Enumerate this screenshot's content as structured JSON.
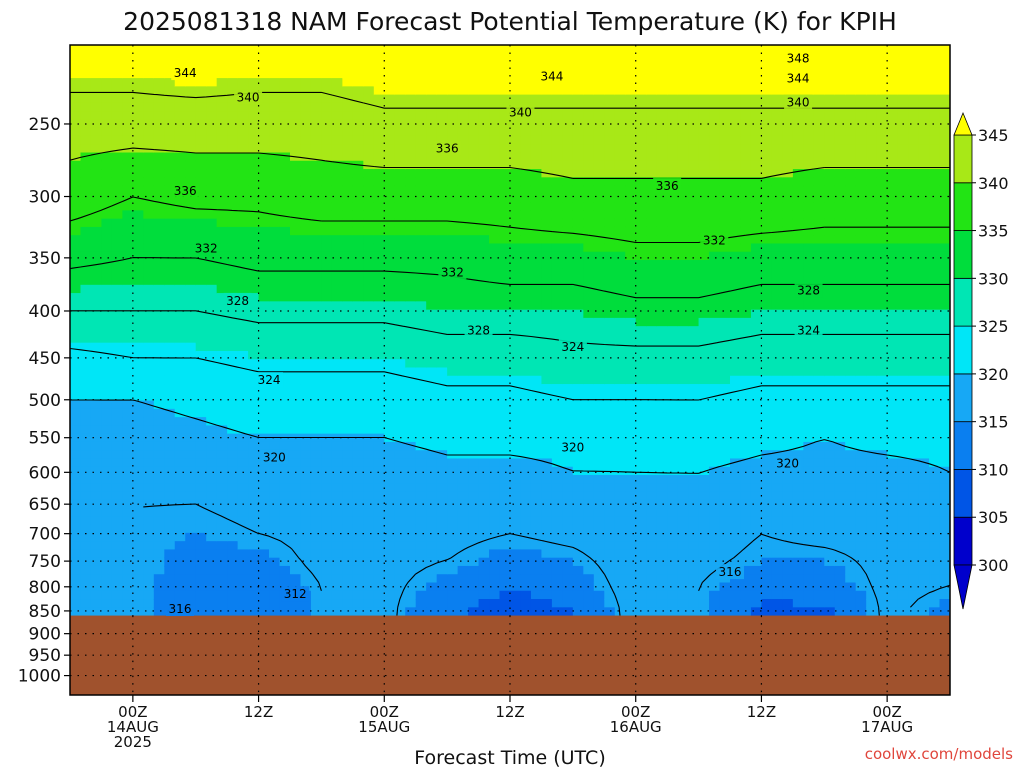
{
  "chart_data": {
    "type": "heatmap",
    "title": "2025081318 NAM Forecast Potential Temperature (K) for KPIH",
    "xlabel": "Forecast Time (UTC)",
    "ylabel": "",
    "y_scale": "log",
    "y_inverted": true,
    "ylim": [
      1050,
      205
    ],
    "y_ticks": [
      250,
      300,
      350,
      400,
      450,
      500,
      550,
      600,
      650,
      700,
      750,
      800,
      850,
      900,
      950,
      1000
    ],
    "x_unit": "hours since 2025-08-13 18Z",
    "xlim": [
      0,
      84
    ],
    "x_ticks": [
      {
        "x": 6,
        "lines": [
          "00Z",
          "14AUG",
          "2025"
        ]
      },
      {
        "x": 18,
        "lines": [
          "12Z"
        ]
      },
      {
        "x": 30,
        "lines": [
          "00Z",
          "15AUG"
        ]
      },
      {
        "x": 42,
        "lines": [
          "12Z"
        ]
      },
      {
        "x": 54,
        "lines": [
          "00Z",
          "16AUG"
        ]
      },
      {
        "x": 66,
        "lines": [
          "12Z"
        ]
      },
      {
        "x": 78,
        "lines": [
          "00Z",
          "17AUG"
        ]
      }
    ],
    "grid": true,
    "underground_below_hpa": 860,
    "colorbar": {
      "levels": [
        300,
        305,
        310,
        315,
        320,
        325,
        330,
        335,
        340,
        345
      ],
      "labels": [
        "300",
        "305",
        "310",
        "315",
        "320",
        "325",
        "330",
        "335",
        "340",
        "345"
      ],
      "extend": "both"
    },
    "contour_levels": [
      316,
      320,
      324,
      328,
      332,
      336,
      340,
      344,
      348
    ],
    "theta_profiles": {
      "pressures": [
        205,
        250,
        300,
        350,
        400,
        450,
        500,
        550,
        600,
        650,
        700,
        750,
        800,
        850
      ],
      "times": [
        0,
        6,
        12,
        18,
        24,
        30,
        36,
        42,
        48,
        54,
        60,
        66,
        72,
        78,
        84
      ],
      "values": [
        [
          347,
          342,
          338,
          333,
          328,
          323,
          320,
          318,
          317,
          317,
          317,
          318,
          318,
          318
        ],
        [
          347,
          342,
          336,
          332,
          328,
          324,
          320,
          318,
          317,
          316,
          316,
          316,
          316,
          316
        ],
        [
          348,
          342,
          337,
          332,
          328,
          324,
          321,
          319,
          317,
          316,
          315,
          314,
          313,
          312
        ],
        [
          347,
          342,
          337,
          333,
          329,
          325,
          322,
          320,
          318,
          317,
          316,
          314,
          312,
          310
        ],
        [
          347,
          342,
          338,
          333,
          329,
          325,
          322,
          320,
          318,
          317,
          317,
          317,
          316,
          316
        ],
        [
          348,
          343,
          338,
          333,
          329,
          325,
          322,
          320,
          318,
          317,
          317,
          317,
          317,
          317
        ],
        [
          348,
          343,
          338,
          333,
          330,
          326,
          323,
          321,
          319,
          318,
          317,
          316,
          314,
          312
        ],
        [
          348,
          343,
          338,
          334,
          330,
          326,
          323,
          321,
          319,
          318,
          316,
          314,
          311,
          306
        ],
        [
          348,
          343,
          339,
          334,
          330,
          327,
          324,
          321,
          320,
          318,
          317,
          315,
          313,
          310
        ],
        [
          348,
          343,
          339,
          335,
          331,
          327,
          324,
          321,
          320,
          319,
          318,
          318,
          318,
          318
        ],
        [
          348,
          343,
          339,
          335,
          331,
          327,
          324,
          322,
          320,
          319,
          318,
          317,
          316,
          316
        ],
        [
          348,
          343,
          339,
          334,
          330,
          326,
          323,
          321,
          319,
          318,
          316,
          315,
          313,
          308
        ],
        [
          348,
          343,
          338,
          334,
          330,
          326,
          323,
          320,
          319,
          318,
          317,
          315,
          313,
          309
        ],
        [
          348,
          343,
          338,
          334,
          330,
          326,
          323,
          321,
          319,
          318,
          317,
          317,
          317,
          317
        ],
        [
          348,
          343,
          338,
          334,
          330,
          326,
          323,
          321,
          320,
          319,
          318,
          317,
          316,
          314
        ]
      ]
    },
    "contour_labels": [
      {
        "text": "348",
        "x": 69.5,
        "y": 212
      },
      {
        "text": "344",
        "x": 11,
        "y": 220
      },
      {
        "text": "344",
        "x": 46,
        "y": 222
      },
      {
        "text": "344",
        "x": 69.5,
        "y": 223
      },
      {
        "text": "340",
        "x": 17,
        "y": 234
      },
      {
        "text": "340",
        "x": 43,
        "y": 243
      },
      {
        "text": "340",
        "x": 69.5,
        "y": 237
      },
      {
        "text": "336",
        "x": 36,
        "y": 266
      },
      {
        "text": "336",
        "x": 11,
        "y": 296
      },
      {
        "text": "336",
        "x": 57,
        "y": 292
      },
      {
        "text": "332",
        "x": 13,
        "y": 342
      },
      {
        "text": "332",
        "x": 36.5,
        "y": 363
      },
      {
        "text": "332",
        "x": 61.5,
        "y": 335
      },
      {
        "text": "328",
        "x": 16,
        "y": 390
      },
      {
        "text": "328",
        "x": 39,
        "y": 420
      },
      {
        "text": "328",
        "x": 70.5,
        "y": 380
      },
      {
        "text": "324",
        "x": 19,
        "y": 476
      },
      {
        "text": "324",
        "x": 48,
        "y": 438
      },
      {
        "text": "324",
        "x": 70.5,
        "y": 420
      },
      {
        "text": "320",
        "x": 19.5,
        "y": 578
      },
      {
        "text": "320",
        "x": 48,
        "y": 564
      },
      {
        "text": "320",
        "x": 68.5,
        "y": 587
      },
      {
        "text": "316",
        "x": 10.5,
        "y": 846
      },
      {
        "text": "312",
        "x": 21.5,
        "y": 815
      },
      {
        "text": "316",
        "x": 63,
        "y": 771
      }
    ]
  },
  "credit": "coolwx.com/models",
  "colors": {
    "background": "#ffffff",
    "ground": "#a0522d",
    "contour_line": "#000000",
    "fill_scale": [
      "#0000cc",
      "#0055e6",
      "#0a7ff0",
      "#17a8f5",
      "#00e6f7",
      "#00e6b4",
      "#00dd3c",
      "#22e414",
      "#a8e817",
      "#ffff00"
    ]
  }
}
